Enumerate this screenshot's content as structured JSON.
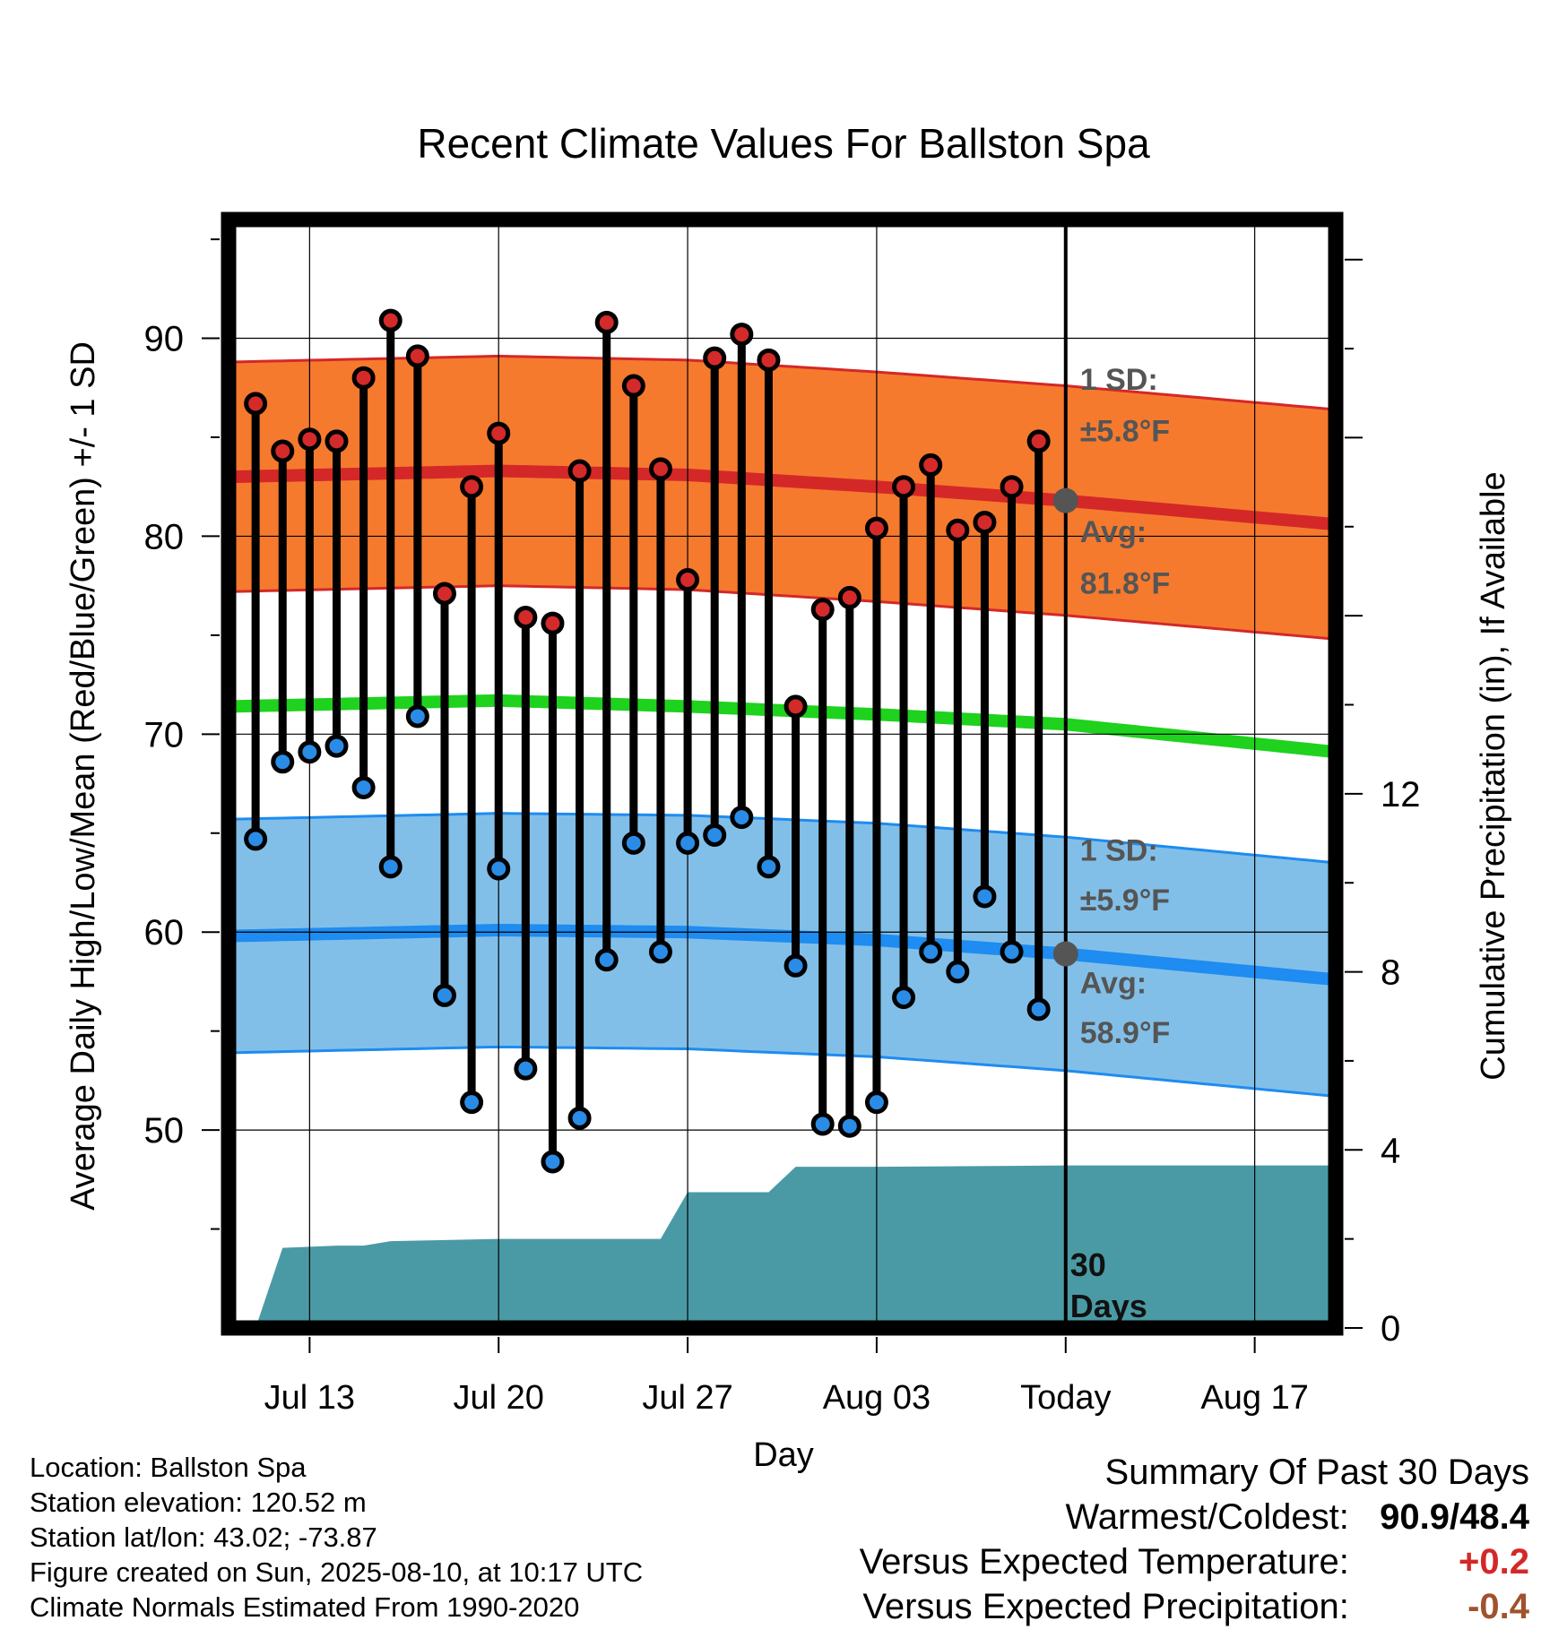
{
  "chart_data": {
    "type": "line",
    "title": "Recent Climate Values For Ballston Spa",
    "xlabel": "Day",
    "ylabel_left": "Average Daily High/Low/Mean (Red/Blue/Green) +/- 1 SD",
    "ylabel_right": "Cumulative Precipitation (in), If Available",
    "x_ticks": [
      "Jul 13",
      "Jul 20",
      "Jul 27",
      "Aug 03",
      "Today",
      "Aug 17"
    ],
    "y_left_ticks": [
      "50",
      "60",
      "70",
      "80",
      "90"
    ],
    "y_right_ticks": [
      "0",
      "4",
      "8",
      "12"
    ],
    "ylim_left": [
      40,
      96
    ],
    "ylim_right": [
      0,
      24.9
    ],
    "xlim": [
      "Jul 10",
      "Aug 20"
    ],
    "grid": true,
    "today_marker": {
      "x": "Aug 10",
      "label_line1": "30",
      "label_line2": "Days"
    },
    "observed": {
      "dates": [
        "Jul 11",
        "Jul 12",
        "Jul 13",
        "Jul 14",
        "Jul 15",
        "Jul 16",
        "Jul 17",
        "Jul 18",
        "Jul 19",
        "Jul 20",
        "Jul 21",
        "Jul 22",
        "Jul 23",
        "Jul 24",
        "Jul 25",
        "Jul 26",
        "Jul 27",
        "Jul 28",
        "Jul 29",
        "Jul 30",
        "Jul 31",
        "Aug 01",
        "Aug 02",
        "Aug 03",
        "Aug 04",
        "Aug 05",
        "Aug 06",
        "Aug 07",
        "Aug 08",
        "Aug 09"
      ],
      "high": [
        86.7,
        84.3,
        84.9,
        84.8,
        88.0,
        90.9,
        89.1,
        77.1,
        82.5,
        85.2,
        75.9,
        75.6,
        83.3,
        90.8,
        87.6,
        83.4,
        77.8,
        89.0,
        90.2,
        88.9,
        71.4,
        76.3,
        76.9,
        80.4,
        82.5,
        83.6,
        80.3,
        80.7,
        82.5,
        84.8
      ],
      "low": [
        64.7,
        68.6,
        69.1,
        69.4,
        67.3,
        63.3,
        70.9,
        56.8,
        51.4,
        63.2,
        53.1,
        48.4,
        50.6,
        58.6,
        64.5,
        59.0,
        64.5,
        64.9,
        65.8,
        63.3,
        58.3,
        50.3,
        50.2,
        51.4,
        56.7,
        59.0,
        58.0,
        61.8,
        59.0,
        56.1
      ]
    },
    "normals": {
      "dates": [
        "Jul 10",
        "Jul 20",
        "Jul 27",
        "Aug 03",
        "Aug 10",
        "Aug 20"
      ],
      "high_mean": [
        83.0,
        83.3,
        83.1,
        82.5,
        81.8,
        80.6
      ],
      "high_sd": 5.8,
      "low_mean": [
        59.8,
        60.1,
        60.0,
        59.6,
        58.9,
        57.6
      ],
      "low_sd": 5.9,
      "mean": [
        71.4,
        71.7,
        71.4,
        71.0,
        70.5,
        69.1
      ]
    },
    "precipitation": {
      "dates": [
        "Jul 10",
        "Jul 11",
        "Jul 12",
        "Jul 14",
        "Jul 15",
        "Jul 16",
        "Jul 20",
        "Jul 26",
        "Jul 27",
        "Jul 30",
        "Jul 31",
        "Aug 03",
        "Aug 10",
        "Aug 20"
      ],
      "cumulative": [
        0,
        0,
        1.8,
        1.85,
        1.85,
        1.95,
        2.0,
        2.0,
        3.05,
        3.05,
        3.62,
        3.62,
        3.65,
        3.65
      ]
    },
    "annotations": {
      "high_sd_line1": "1 SD:",
      "high_sd_line2": "±5.8°F",
      "high_avg_line1": "Avg:",
      "high_avg_line2": "81.8°F",
      "low_sd_line1": "1 SD:",
      "low_sd_line2": "±5.9°F",
      "low_avg_line1": "Avg:",
      "low_avg_line2": "58.9°F"
    },
    "colors": {
      "high_band": "#f57a2e",
      "high_line": "#d42828",
      "high_point": "#d42a2a",
      "low_band": "#82bfe8",
      "low_line": "#1e8cf0",
      "low_point": "#2a8ce6",
      "mean_line": "#1ed21e",
      "precip": "#4a9aa5",
      "annotation": "#555555"
    }
  },
  "footer": {
    "location": "Location: Ballston Spa",
    "elevation": "Station elevation: 120.52 m",
    "latlon": "Station lat/lon: 43.02; -73.87",
    "created": "Figure created on Sun, 2025-08-10, at 10:17 UTC",
    "normals": "Climate Normals Estimated From 1990-2020"
  },
  "summary": {
    "title": "Summary Of Past 30 Days",
    "warm_cold_label": "Warmest/Coldest:",
    "warm_cold_value": "90.9/48.4",
    "temp_label": "Versus Expected Temperature:",
    "temp_value": "+0.2",
    "temp_color": "#d42828",
    "precip_label": "Versus Expected Precipitation:",
    "precip_value": "-0.4",
    "precip_color": "#a0522d"
  }
}
